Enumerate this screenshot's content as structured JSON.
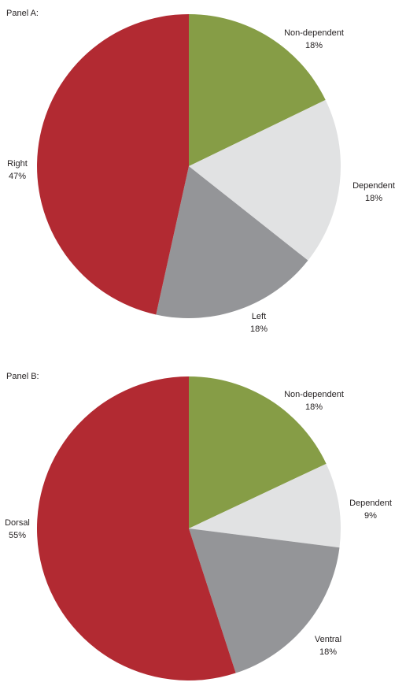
{
  "chart_data": [
    {
      "type": "pie",
      "title": "Panel A:",
      "slices": [
        {
          "label": "Non-dependent",
          "value_label": "18%",
          "value": 18,
          "color": "#869d46"
        },
        {
          "label": "Dependent",
          "value_label": "18%",
          "value": 18,
          "color": "#e1e2e3"
        },
        {
          "label": "Left",
          "value_label": "18%",
          "value": 18,
          "color": "#949598"
        },
        {
          "label": "Right",
          "value_label": "47%",
          "value": 47,
          "color": "#b22a32"
        }
      ]
    },
    {
      "type": "pie",
      "title": "Panel B:",
      "slices": [
        {
          "label": "Non-dependent",
          "value_label": "18%",
          "value": 18,
          "color": "#869d46"
        },
        {
          "label": "Dependent",
          "value_label": "9%",
          "value": 9,
          "color": "#e1e2e3"
        },
        {
          "label": "Ventral",
          "value_label": "18%",
          "value": 18,
          "color": "#949598"
        },
        {
          "label": "Dorsal",
          "value_label": "55%",
          "value": 55,
          "color": "#b22a32"
        }
      ]
    }
  ]
}
